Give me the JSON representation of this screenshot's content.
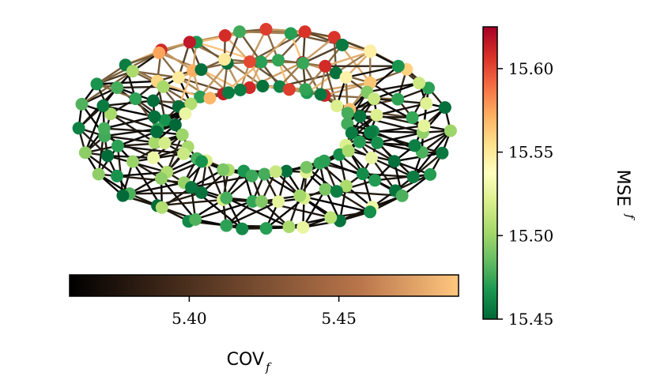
{
  "chart_data": {
    "type": "network-graph",
    "title": "",
    "description_text": "",
    "node_colorbar": {
      "label": "MSE",
      "label_subscript": "f",
      "colormap": "RdYlGn_r",
      "range": [
        15.45,
        15.625
      ],
      "ticks": [
        15.45,
        15.5,
        15.55,
        15.6
      ],
      "tick_labels": [
        "15.45",
        "15.50",
        "15.55",
        "15.60"
      ],
      "orientation": "vertical"
    },
    "edge_colorbar": {
      "label": "COV",
      "label_subscript": "f",
      "colormap": "copper",
      "range": [
        5.36,
        5.49
      ],
      "ticks": [
        5.4,
        5.45
      ],
      "tick_labels": [
        "5.40",
        "5.45"
      ],
      "orientation": "horizontal"
    },
    "graph": {
      "shape": "torus",
      "major_nodes": 26,
      "minor_nodes": 6,
      "node_values_pattern": "mostly low MSE (green), a few high MSE (red) along top rim",
      "edge_values_pattern": "mostly low COV (dark), brighter edges toward top rim"
    },
    "colors": {
      "rdylgn": [
        "#006837",
        "#1a9850",
        "#66bd63",
        "#a6d96a",
        "#d9ef8b",
        "#ffffbf",
        "#fee08b",
        "#fdae61",
        "#f46d43",
        "#d73027",
        "#a50026"
      ],
      "copper_start": "#000000",
      "copper_end": "#ffc77f"
    }
  }
}
